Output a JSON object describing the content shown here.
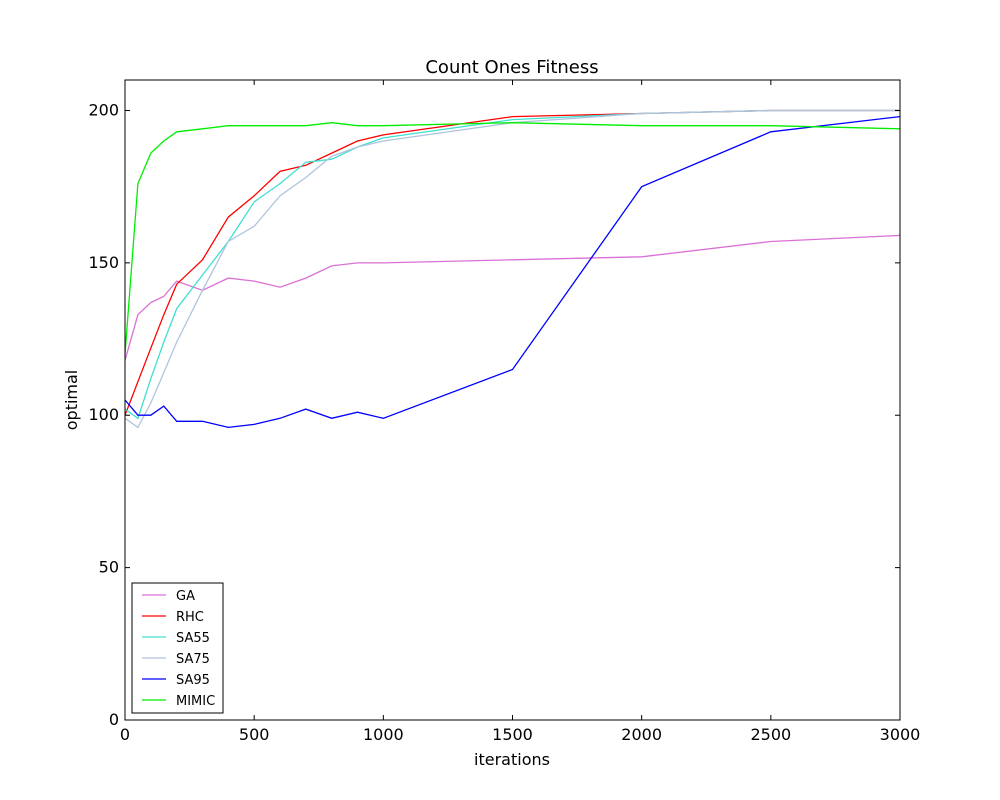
{
  "chart_data": {
    "type": "line",
    "title": "Count Ones Fitness",
    "xlabel": "iterations",
    "ylabel": "optimal",
    "xlim": [
      0,
      3000
    ],
    "ylim": [
      0,
      210
    ],
    "xticks": [
      0,
      500,
      1000,
      1500,
      2000,
      2500,
      3000
    ],
    "yticks": [
      0,
      50,
      100,
      150,
      200
    ],
    "grid": false,
    "legend_position": "lower-left",
    "series": [
      {
        "name": "GA",
        "color": "#da70d6",
        "x": [
          0,
          50,
          100,
          150,
          200,
          300,
          400,
          500,
          600,
          700,
          800,
          900,
          1000,
          1500,
          2000,
          2500,
          3000
        ],
        "y": [
          118,
          133,
          137,
          139,
          144,
          141,
          145,
          144,
          142,
          145,
          149,
          150,
          150,
          151,
          152,
          157,
          159
        ]
      },
      {
        "name": "RHC",
        "color": "#ff0000",
        "x": [
          0,
          50,
          100,
          150,
          200,
          300,
          400,
          500,
          600,
          700,
          800,
          900,
          1000,
          1500,
          2000,
          2500,
          3000
        ],
        "y": [
          100,
          111,
          122,
          133,
          143,
          151,
          165,
          172,
          180,
          182,
          186,
          190,
          192,
          198,
          199,
          200,
          200
        ]
      },
      {
        "name": "SA55",
        "color": "#40e0d0",
        "x": [
          0,
          50,
          100,
          150,
          200,
          300,
          400,
          500,
          600,
          700,
          800,
          900,
          1000,
          1500,
          2000,
          2500,
          3000
        ],
        "y": [
          102,
          99,
          112,
          124,
          135,
          146,
          157,
          170,
          176,
          183,
          184,
          188,
          191,
          197,
          199,
          200,
          200
        ]
      },
      {
        "name": "SA75",
        "color": "#b0c4de",
        "x": [
          0,
          50,
          100,
          150,
          200,
          300,
          400,
          500,
          600,
          700,
          800,
          900,
          1000,
          1500,
          2000,
          2500,
          3000
        ],
        "y": [
          99,
          96,
          104,
          114,
          124,
          141,
          157,
          162,
          172,
          178,
          185,
          188,
          190,
          196,
          199,
          200,
          200
        ]
      },
      {
        "name": "SA95",
        "color": "#0000ff",
        "x": [
          0,
          50,
          100,
          150,
          200,
          300,
          400,
          500,
          600,
          700,
          800,
          900,
          1000,
          1500,
          2000,
          2500,
          3000
        ],
        "y": [
          105,
          100,
          100,
          103,
          98,
          98,
          96,
          97,
          99,
          102,
          99,
          101,
          99,
          115,
          175,
          193,
          198
        ]
      },
      {
        "name": "MIMIC",
        "color": "#00ee00",
        "x": [
          0,
          50,
          100,
          150,
          200,
          300,
          400,
          500,
          600,
          700,
          800,
          900,
          1000,
          1500,
          2000,
          2500,
          3000
        ],
        "y": [
          120,
          176,
          186,
          190,
          193,
          194,
          195,
          195,
          195,
          195,
          196,
          195,
          195,
          196,
          195,
          195,
          194
        ]
      }
    ]
  }
}
